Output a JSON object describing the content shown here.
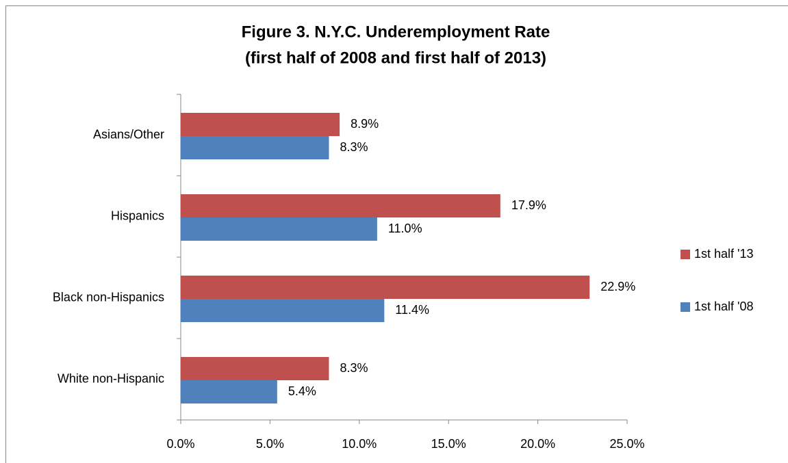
{
  "chart_data": {
    "type": "hbar",
    "title": [
      "Figure 3. N.Y.C. Underemployment Rate",
      "(first half of 2008 and first half of 2013)"
    ],
    "categories": [
      "Asians/Other",
      "Hispanics",
      "Black non-Hispanics",
      "White non-Hispanic"
    ],
    "series": [
      {
        "name": "1st half '13",
        "color": "#c0504d",
        "values": [
          8.9,
          17.9,
          22.9,
          8.3
        ],
        "value_labels": [
          "8.9%",
          "17.9%",
          "22.9%",
          "8.3%"
        ]
      },
      {
        "name": "1st half '08",
        "color": "#4f81bd",
        "values": [
          8.3,
          11.0,
          11.4,
          5.4
        ],
        "value_labels": [
          "8.3%",
          "11.0%",
          "11.4%",
          "5.4%"
        ]
      }
    ],
    "xlim": [
      0,
      25
    ],
    "xticks": [
      {
        "value": 0,
        "label": "0.0%"
      },
      {
        "value": 5,
        "label": "5.0%"
      },
      {
        "value": 10,
        "label": "10.0%"
      },
      {
        "value": 15,
        "label": "15.0%"
      },
      {
        "value": 20,
        "label": "20.0%"
      },
      {
        "value": 25,
        "label": "25.0%"
      }
    ],
    "legend": "right"
  }
}
